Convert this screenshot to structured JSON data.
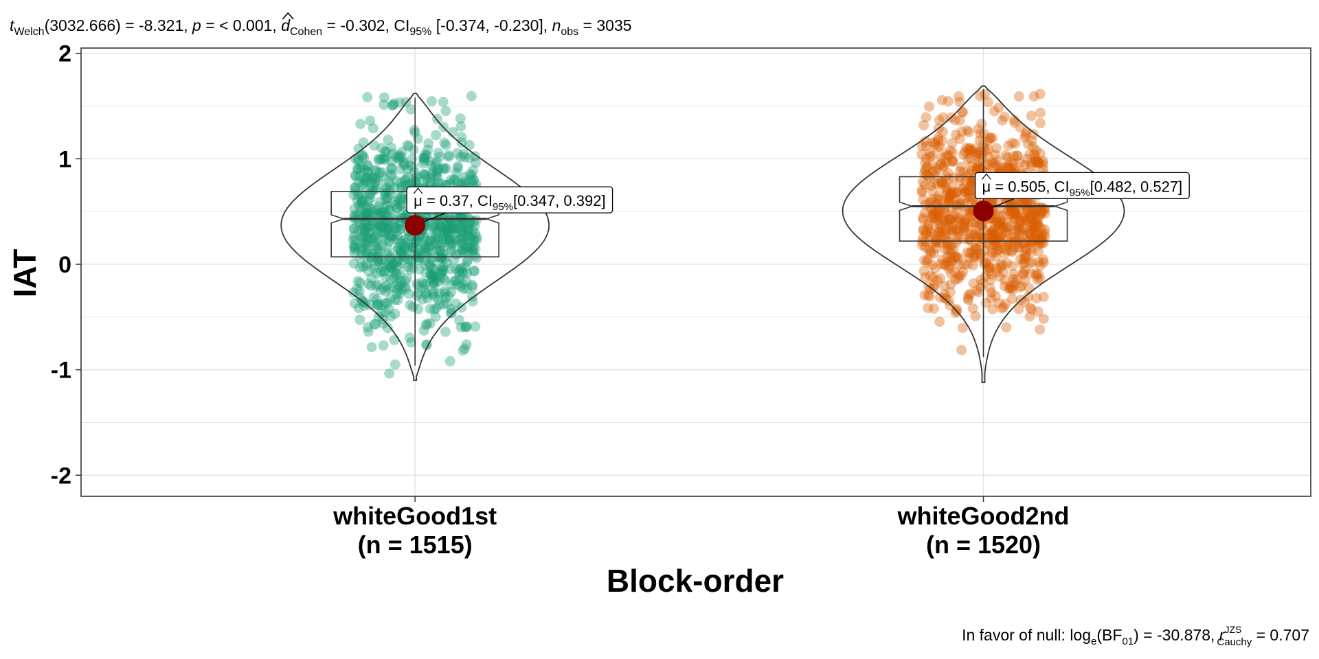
{
  "chart_data": {
    "type": "violin",
    "subtitle": {
      "t_label": "t",
      "t_sub": "Welch",
      "df_stat": "(3032.666) = -8.321, ",
      "p_label": "p",
      "p_text": " = < 0.001, ",
      "d_label": "d",
      "d_sub": "Cohen",
      "d_text": " = -0.302, CI",
      "ci_sub": "95%",
      "ci_text": " [-0.374, -0.230], ",
      "n_label": "n",
      "n_sub": "obs",
      "n_text": " = 3035"
    },
    "caption": {
      "prefix": "In favor of null: log",
      "log_sub": "e",
      "bf_text": "(BF",
      "bf_sub": "01",
      "bf_value": ") = -30.878, ",
      "r_label": "r",
      "r_sup": "JZS",
      "r_sub": "Cauchy",
      "r_value": " = 0.707"
    },
    "xlabel": "Block-order",
    "ylabel": "IAT",
    "ylim": [
      -2.2,
      2.05
    ],
    "yticks": [
      -2,
      -1,
      0,
      1,
      2
    ],
    "grid": true,
    "categories": [
      {
        "name": "whiteGood1st",
        "n_label": "(n = 1515)",
        "n": 1515,
        "color": "#1b9e77",
        "mean": 0.37,
        "ci": [
          0.347,
          0.392
        ],
        "mean_label": {
          "mu": "μ",
          "value": " = 0.37, CI",
          "ci_sub": "95%",
          "ci_text": "[0.347, 0.392]"
        },
        "box": {
          "q1": 0.07,
          "median": 0.43,
          "q3": 0.69,
          "whisker_low": -0.96,
          "whisker_high": 1.58
        },
        "range": [
          -1.08,
          1.6
        ]
      },
      {
        "name": "whiteGood2nd",
        "n_label": "(n = 1520)",
        "n": 1520,
        "color": "#d95f02",
        "mean": 0.505,
        "ci": [
          0.482,
          0.527
        ],
        "mean_label": {
          "mu": "μ",
          "value": " = 0.505, CI",
          "ci_sub": "95%",
          "ci_text": "[0.482, 0.527]"
        },
        "box": {
          "q1": 0.22,
          "median": 0.55,
          "q3": 0.83,
          "whisker_low": -0.88,
          "whisker_high": 1.66
        },
        "range": [
          -1.1,
          1.67
        ]
      }
    ],
    "colors": {
      "mean_point": "#8b0000",
      "outline": "#333333",
      "grid": "#e3e3e3"
    }
  }
}
